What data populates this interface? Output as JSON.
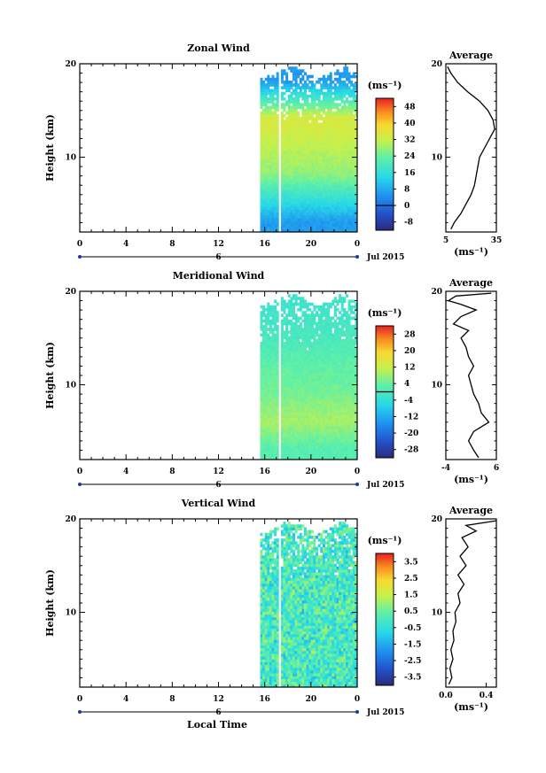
{
  "figure": {
    "month_label": "Jul 2015",
    "date_label": "6",
    "xlabel": "Local Time"
  },
  "chart_data": [
    {
      "type": "heatmap",
      "title": "Zonal Wind",
      "ylabel": "Height (km)",
      "x_range": [
        0,
        24
      ],
      "x_ticks": [
        "0",
        "4",
        "8",
        "12",
        "16",
        "20",
        "0"
      ],
      "ylim": [
        2,
        20
      ],
      "y_ticks": [
        "10",
        "20"
      ],
      "data_coverage_hours": [
        15.6,
        24
      ],
      "data_gap_hours": [
        17.0,
        17.3
      ],
      "colorbar": {
        "unit": "(ms⁻¹)",
        "ticks": [
          "-8",
          "0",
          "8",
          "16",
          "24",
          "32",
          "40",
          "48"
        ],
        "range": [
          -12,
          52
        ],
        "zero_line": 0
      },
      "profile_levels_km": [
        {
          "h": 3,
          "v": 6
        },
        {
          "h": 8,
          "v": 27
        },
        {
          "h": 11,
          "v": 31
        },
        {
          "h": 14,
          "v": 34
        },
        {
          "h": 16,
          "v": 20
        },
        {
          "h": 18,
          "v": 6
        }
      ],
      "average": {
        "title": "Average",
        "unit": "(ms⁻¹)",
        "x_ticks": [
          "5",
          "35"
        ],
        "xlim": [
          5,
          35
        ],
        "y_ticks": [
          "10",
          "20"
        ],
        "ylim": [
          2,
          20
        ],
        "profile": [
          {
            "y": 2.3,
            "x": 8
          },
          {
            "y": 3,
            "x": 10
          },
          {
            "y": 4,
            "x": 14
          },
          {
            "y": 5,
            "x": 17
          },
          {
            "y": 6,
            "x": 20
          },
          {
            "y": 7,
            "x": 22
          },
          {
            "y": 8,
            "x": 23
          },
          {
            "y": 9,
            "x": 24
          },
          {
            "y": 10,
            "x": 25
          },
          {
            "y": 11,
            "x": 28
          },
          {
            "y": 12,
            "x": 31
          },
          {
            "y": 13,
            "x": 34
          },
          {
            "y": 14,
            "x": 33
          },
          {
            "y": 15,
            "x": 30
          },
          {
            "y": 16,
            "x": 25
          },
          {
            "y": 17,
            "x": 18
          },
          {
            "y": 18,
            "x": 12
          },
          {
            "y": 19,
            "x": 8
          },
          {
            "y": 19.7,
            "x": 6
          }
        ]
      }
    },
    {
      "type": "heatmap",
      "title": "Meridional Wind",
      "ylabel": "Height (km)",
      "x_range": [
        0,
        24
      ],
      "x_ticks": [
        "0",
        "4",
        "8",
        "12",
        "16",
        "20",
        "0"
      ],
      "ylim": [
        2,
        20
      ],
      "y_ticks": [
        "10",
        "20"
      ],
      "data_coverage_hours": [
        15.6,
        24
      ],
      "data_gap_hours": [
        17.0,
        17.3
      ],
      "colorbar": {
        "unit": "(ms⁻¹)",
        "ticks": [
          "-28",
          "-20",
          "-12",
          "-4",
          "4",
          "12",
          "20",
          "28"
        ],
        "range": [
          -32,
          32
        ],
        "zero_line": 0
      },
      "profile_levels_km": [
        {
          "h": 3,
          "v": 2
        },
        {
          "h": 6,
          "v": 9
        },
        {
          "h": 9,
          "v": 5
        },
        {
          "h": 12,
          "v": 3
        },
        {
          "h": 15,
          "v": 0
        },
        {
          "h": 18,
          "v": -2
        }
      ],
      "average": {
        "title": "Average",
        "unit": "(ms⁻¹)",
        "x_ticks": [
          "-4",
          "6"
        ],
        "xlim": [
          -4,
          6
        ],
        "y_ticks": [
          "10",
          "20"
        ],
        "ylim": [
          2,
          20
        ],
        "profile": [
          {
            "y": 2.2,
            "x": 2.5
          },
          {
            "y": 3,
            "x": 1.5
          },
          {
            "y": 4,
            "x": 0.5
          },
          {
            "y": 5,
            "x": 1.5
          },
          {
            "y": 6,
            "x": 4.5
          },
          {
            "y": 7,
            "x": 3
          },
          {
            "y": 8,
            "x": 2.5
          },
          {
            "y": 9,
            "x": 1.5
          },
          {
            "y": 10,
            "x": 1
          },
          {
            "y": 11,
            "x": 0.5
          },
          {
            "y": 12,
            "x": 1.5
          },
          {
            "y": 13,
            "x": 0.5
          },
          {
            "y": 14,
            "x": 0
          },
          {
            "y": 15,
            "x": -1
          },
          {
            "y": 15.8,
            "x": 0.5
          },
          {
            "y": 16.5,
            "x": -2.5
          },
          {
            "y": 17.3,
            "x": -1
          },
          {
            "y": 18,
            "x": 2
          },
          {
            "y": 18.6,
            "x": -1
          },
          {
            "y": 19,
            "x": -3.5
          },
          {
            "y": 19.5,
            "x": -2
          },
          {
            "y": 19.8,
            "x": 5
          }
        ]
      }
    },
    {
      "type": "heatmap",
      "title": "Vertical Wind",
      "ylabel": "Height (km)",
      "x_range": [
        0,
        24
      ],
      "x_ticks": [
        "0",
        "4",
        "8",
        "12",
        "16",
        "20",
        "0"
      ],
      "ylim": [
        2,
        20
      ],
      "y_ticks": [
        "10",
        "20"
      ],
      "data_coverage_hours": [
        15.6,
        24
      ],
      "data_gap_hours": [
        17.0,
        17.3
      ],
      "colorbar": {
        "unit": "(ms⁻¹)",
        "ticks": [
          "-3.5",
          "-2.5",
          "-1.5",
          "-0.5",
          "0.5",
          "1.5",
          "2.5",
          "3.5"
        ],
        "range": [
          -4,
          4
        ],
        "zero_line": null
      },
      "profile_levels_km": [
        {
          "h": 4,
          "v": -0.1
        },
        {
          "h": 10,
          "v": 0.0
        },
        {
          "h": 16,
          "v": -0.1
        }
      ],
      "average": {
        "title": "Average",
        "unit": "(ms⁻¹)",
        "x_ticks": [
          "0.0",
          "0.4"
        ],
        "xlim": [
          0,
          0.5
        ],
        "y_ticks": [
          "10",
          "20"
        ],
        "ylim": [
          2,
          20
        ],
        "profile": [
          {
            "y": 2.3,
            "x": 0.03
          },
          {
            "y": 3,
            "x": 0.06
          },
          {
            "y": 4,
            "x": 0.04
          },
          {
            "y": 5,
            "x": 0.07
          },
          {
            "y": 6,
            "x": 0.05
          },
          {
            "y": 7,
            "x": 0.08
          },
          {
            "y": 8,
            "x": 0.07
          },
          {
            "y": 9,
            "x": 0.1
          },
          {
            "y": 10,
            "x": 0.09
          },
          {
            "y": 11,
            "x": 0.14
          },
          {
            "y": 12,
            "x": 0.12
          },
          {
            "y": 13,
            "x": 0.18
          },
          {
            "y": 14,
            "x": 0.12
          },
          {
            "y": 15,
            "x": 0.2
          },
          {
            "y": 16,
            "x": 0.14
          },
          {
            "y": 17,
            "x": 0.22
          },
          {
            "y": 18,
            "x": 0.16
          },
          {
            "y": 18.7,
            "x": 0.3
          },
          {
            "y": 19.3,
            "x": 0.2
          },
          {
            "y": 19.8,
            "x": 0.5
          }
        ]
      }
    }
  ]
}
